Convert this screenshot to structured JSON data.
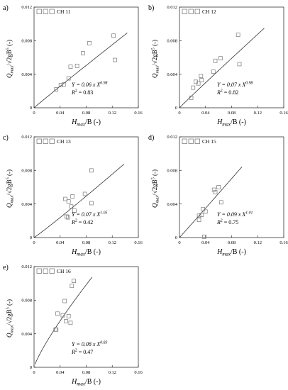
{
  "chart_data": [
    {
      "type": "scatter",
      "panel_label": "a)",
      "legend": "CH 11",
      "xlabel_main": "H",
      "xlabel_sub": "max",
      "xlabel_rest": "/B (-)",
      "ylabel_main": "Q",
      "ylabel_sub": "max",
      "ylabel_rest": "/√2gB",
      "ylabel_sup": "5",
      "ylabel_tail": " (-)",
      "xlim": [
        0,
        0.16
      ],
      "ylim": [
        0,
        0.012
      ],
      "xticks": [
        "0",
        "0.04",
        "0.08",
        "0.12",
        "0.16"
      ],
      "yticks": [
        "0",
        "0.004",
        "0.008",
        "0.012"
      ],
      "equation_text": "Y = 0.06 x X",
      "exponent": "0.98",
      "r2_label": "R",
      "r2_sup": "2",
      "r2_value": " = 0.83",
      "fit": {
        "a": 0.06,
        "b": 0.98,
        "x_start": 0.0,
        "x_end": 0.143
      },
      "points": [
        [
          0.034,
          0.0022
        ],
        [
          0.041,
          0.0027
        ],
        [
          0.046,
          0.0028
        ],
        [
          0.053,
          0.0035
        ],
        [
          0.056,
          0.0049
        ],
        [
          0.066,
          0.005
        ],
        [
          0.075,
          0.0065
        ],
        [
          0.085,
          0.0077
        ],
        [
          0.122,
          0.0086
        ],
        [
          0.124,
          0.0057
        ]
      ]
    },
    {
      "type": "scatter",
      "panel_label": "b)",
      "legend": "CH 12",
      "xlabel_main": "H",
      "xlabel_sub": "max",
      "xlabel_rest": "/B (-)",
      "ylabel_main": "Q",
      "ylabel_sub": "max",
      "ylabel_rest": "/√2gB",
      "ylabel_sup": "5",
      "ylabel_tail": " (-)",
      "xlim": [
        0,
        0.16
      ],
      "ylim": [
        0,
        0.012
      ],
      "xticks": [
        "0",
        "0.04",
        "0.08",
        "0.12",
        "0.16"
      ],
      "yticks": [
        "0",
        "0.004",
        "0.008",
        "0.012"
      ],
      "equation_text": "Y = 0.07 x X",
      "exponent": "0.98",
      "r2_label": "R",
      "r2_sup": "2",
      "r2_value": " = 0.82",
      "fit": {
        "a": 0.07,
        "b": 0.98,
        "x_start": 0.0,
        "x_end": 0.13
      },
      "points": [
        [
          0.018,
          0.0012
        ],
        [
          0.021,
          0.0024
        ],
        [
          0.025,
          0.0031
        ],
        [
          0.029,
          0.0029
        ],
        [
          0.033,
          0.0038
        ],
        [
          0.034,
          0.0033
        ],
        [
          0.052,
          0.0043
        ],
        [
          0.055,
          0.0056
        ],
        [
          0.063,
          0.0059
        ],
        [
          0.09,
          0.0087
        ],
        [
          0.092,
          0.0052
        ]
      ]
    },
    {
      "type": "scatter",
      "panel_label": "c)",
      "legend": "CH 13",
      "xlabel_main": "H",
      "xlabel_sub": "max",
      "xlabel_rest": "/B (-)",
      "ylabel_main": "Q",
      "ylabel_sub": "max",
      "ylabel_rest": "/√2gB",
      "ylabel_sup": "5",
      "ylabel_tail": " (-)",
      "xlim": [
        0,
        0.16
      ],
      "ylim": [
        0,
        0.012
      ],
      "xticks": [
        "0",
        "0.04",
        "0.08",
        "0.12",
        "0.16"
      ],
      "yticks": [
        "0",
        "0.004",
        "0.008",
        "0.012"
      ],
      "equation_text": "Y = 0.07 x X",
      "exponent": "1.05",
      "r2_label": "R",
      "r2_sup": "2",
      "r2_value": " = 0.42",
      "fit": {
        "a": 0.07,
        "b": 1.05,
        "x_start": 0.0,
        "x_end": 0.138
      },
      "points": [
        [
          0.048,
          0.0046
        ],
        [
          0.05,
          0.0025
        ],
        [
          0.052,
          0.0024
        ],
        [
          0.053,
          0.0043
        ],
        [
          0.057,
          0.0037
        ],
        [
          0.059,
          0.0049
        ],
        [
          0.062,
          0.0032
        ],
        [
          0.078,
          0.0052
        ],
        [
          0.088,
          0.008
        ],
        [
          0.088,
          0.0041
        ]
      ]
    },
    {
      "type": "scatter",
      "panel_label": "d)",
      "legend": "CH 15",
      "xlabel_main": "H",
      "xlabel_sub": "max",
      "xlabel_rest": "/B (-)",
      "ylabel_main": "Q",
      "ylabel_sub": "max",
      "ylabel_rest": "/√2gB",
      "ylabel_sup": "5",
      "ylabel_tail": " (-)",
      "xlim": [
        0,
        0.16
      ],
      "ylim": [
        0,
        0.012
      ],
      "xticks": [
        "0",
        "0.04",
        "0.08",
        "0.12",
        "0.16"
      ],
      "yticks": [
        "0",
        "0.004",
        "0.008",
        "0.012"
      ],
      "equation_text": "Y = 0.09 x X",
      "exponent": "1.01",
      "r2_label": "R",
      "r2_sup": "2",
      "r2_value": " = 0.75",
      "fit": {
        "a": 0.09,
        "b": 1.01,
        "x_start": 0.0,
        "x_end": 0.096
      },
      "points": [
        [
          0.03,
          0.0026
        ],
        [
          0.03,
          0.0021
        ],
        [
          0.034,
          0.0027
        ],
        [
          0.036,
          0.0034
        ],
        [
          0.038,
          0.0001
        ],
        [
          0.04,
          0.0031
        ],
        [
          0.053,
          0.0057
        ],
        [
          0.055,
          0.0054
        ],
        [
          0.06,
          0.006
        ],
        [
          0.064,
          0.0042
        ]
      ]
    },
    {
      "type": "scatter",
      "panel_label": "e)",
      "legend": "CH 16",
      "xlabel_main": "H",
      "xlabel_sub": "max",
      "xlabel_rest": "/B (-)",
      "ylabel_main": "Q",
      "ylabel_sub": "max",
      "ylabel_rest": "/√2gB",
      "ylabel_sup": "5",
      "ylabel_tail": " (-)",
      "xlim": [
        0,
        0.16
      ],
      "ylim": [
        0,
        0.012
      ],
      "xticks": [
        "0",
        "0.04",
        "0.08",
        "0.12",
        "0.16"
      ],
      "yticks": [
        "0",
        "0.004",
        "0.008",
        "0.012"
      ],
      "equation_text": "Y = 0.08 x X",
      "exponent": "0.83",
      "r2_label": "R",
      "r2_sup": "2",
      "r2_value": " = 0.47",
      "fit": {
        "a": 0.08,
        "b": 0.83,
        "x_start": 0.0015,
        "x_end": 0.089
      },
      "points": [
        [
          0.033,
          0.0045
        ],
        [
          0.034,
          0.0045
        ],
        [
          0.036,
          0.0064
        ],
        [
          0.044,
          0.0062
        ],
        [
          0.047,
          0.0079
        ],
        [
          0.049,
          0.0055
        ],
        [
          0.053,
          0.0061
        ],
        [
          0.056,
          0.0053
        ],
        [
          0.058,
          0.0097
        ],
        [
          0.061,
          0.0103
        ]
      ]
    }
  ]
}
